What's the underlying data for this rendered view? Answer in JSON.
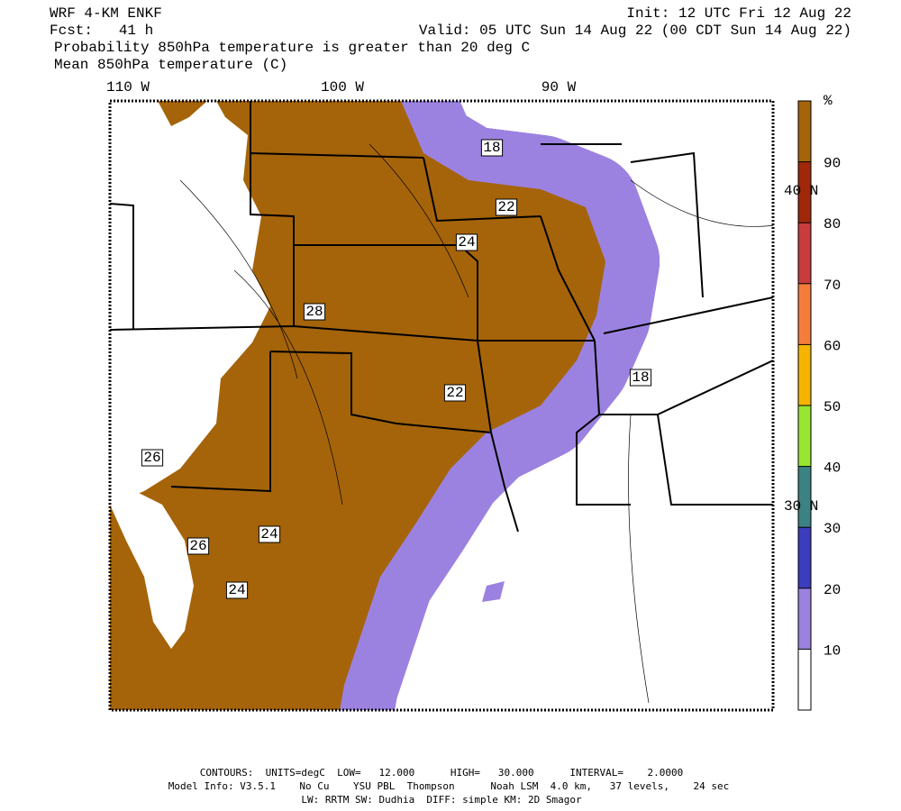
{
  "header": {
    "model": "WRF 4-KM ENKF",
    "forecast": "Fcst:   41 h",
    "init": "Init: 12 UTC Fri 12 Aug 22",
    "valid": "Valid: 05 UTC Sun 14 Aug 22 (00 CDT Sun 14 Aug 22)",
    "field": "Probability 850hPa temperature is greater than 20 deg C",
    "contour_field": "Mean 850hPa temperature (C)"
  },
  "map": {
    "longitude_labels": [
      "110 W",
      "100 W",
      "90 W"
    ],
    "latitude_labels": [
      "40 N",
      "30 N"
    ],
    "contour_labels": [
      "18",
      "22",
      "24",
      "28",
      "22",
      "18",
      "26",
      "26",
      "24",
      "24"
    ]
  },
  "colorbar": {
    "unit": "%",
    "labels": [
      10,
      20,
      30,
      40,
      50,
      60,
      70,
      80,
      90
    ],
    "colors": [
      "#ffffff",
      "#9b82e0",
      "#3c3cbe",
      "#3c8282",
      "#96e632",
      "#f5b400",
      "#f57d3c",
      "#c83c3c",
      "#a0280a",
      "#a5640a"
    ]
  },
  "footer": {
    "contours": "CONTOURS:  UNITS=degC  LOW=   12.000      HIGH=   30.000      INTERVAL=    2.0000",
    "model_info": "Model Info: V3.5.1    No Cu    YSU PBL  Thompson      Noah LSM  4.0 km,   37 levels,    24 sec",
    "physics": "LW: RRTM SW: Dudhia  DIFF: simple KM: 2D Smagor"
  }
}
